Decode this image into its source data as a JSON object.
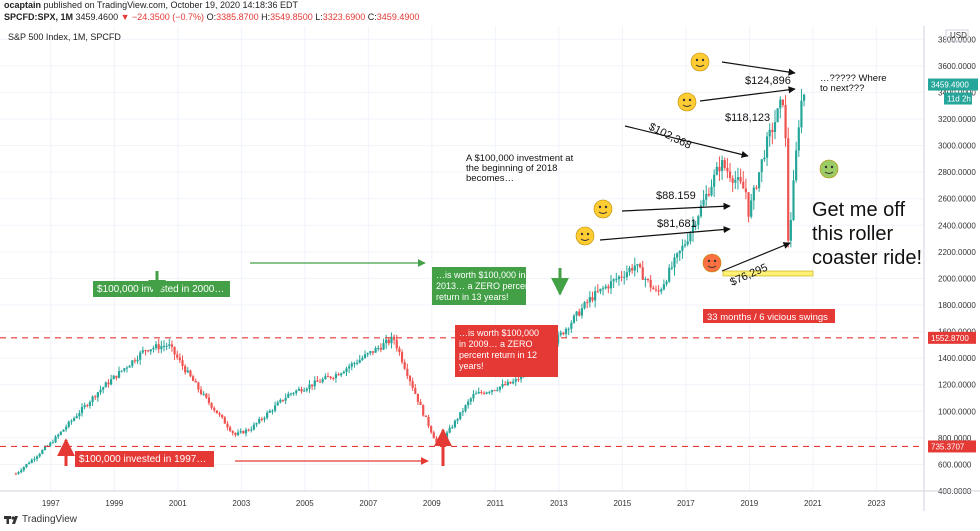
{
  "header": {
    "publisher": "ocaptain",
    "published_text": "published on TradingView.com, October 19, 2020 14:18:36 EDT",
    "symbol": "SPCFD:SPX, 1M",
    "last": "3459.4600",
    "change": "▼ −24.3500 (−0.7%)",
    "o_label": "O:",
    "o_val": "3385.8700",
    "h_label": "H:",
    "h_val": "3549.8500",
    "l_label": "L:",
    "l_val": "3323.6900",
    "c_label": "C:",
    "c_val": "3459.4900"
  },
  "brand": "TradingView",
  "colors": {
    "up": "#26a69a",
    "down": "#ef5350",
    "green_box": "#43a047",
    "red_box": "#e53935",
    "dashed": "#e53935",
    "price_tag": "#26a69a",
    "highlight": "#fff176"
  },
  "chart_data": {
    "type": "candlestick",
    "title": "S&P 500 Index, 1M, SPCFD",
    "currency": "USD",
    "ylim": [
      400,
      3900
    ],
    "xlim": [
      1995.4,
      2024.5
    ],
    "y_ticks": [
      "400.0000",
      "600.0000",
      "800.0000",
      "1000.0000",
      "1200.0000",
      "1400.0000",
      "1600.0000",
      "1800.0000",
      "2000.0000",
      "2200.0000",
      "2400.0000",
      "2600.0000",
      "2800.0000",
      "3000.0000",
      "3200.0000",
      "3400.0000",
      "3600.0000",
      "3800.0000"
    ],
    "x_ticks": [
      "1997",
      "1999",
      "2001",
      "2003",
      "2005",
      "2007",
      "2009",
      "2011",
      "2013",
      "2015",
      "2017",
      "2019",
      "2021",
      "2023"
    ],
    "anchors": [
      [
        1995.9,
        530
      ],
      [
        1997.0,
        760
      ],
      [
        1998.5,
        1150
      ],
      [
        2000.0,
        1470
      ],
      [
        2000.7,
        1500
      ],
      [
        2001.7,
        1150
      ],
      [
        2002.8,
        820
      ],
      [
        2003.3,
        870
      ],
      [
        2004.5,
        1130
      ],
      [
        2006.0,
        1280
      ],
      [
        2007.8,
        1550
      ],
      [
        2008.7,
        1000
      ],
      [
        2009.2,
        735
      ],
      [
        2010.3,
        1120
      ],
      [
        2011.6,
        1220
      ],
      [
        2012.5,
        1420
      ],
      [
        2013.0,
        1560
      ],
      [
        2014.0,
        1850
      ],
      [
        2015.4,
        2100
      ],
      [
        2016.1,
        1880
      ],
      [
        2017.0,
        2280
      ],
      [
        2018.1,
        2870
      ],
      [
        2018.9,
        2650
      ],
      [
        2018.98,
        2490
      ],
      [
        2019.5,
        2980
      ],
      [
        2020.1,
        3380
      ],
      [
        2020.23,
        2240
      ],
      [
        2020.6,
        3300
      ],
      [
        2020.8,
        3459.49
      ]
    ],
    "candles": {
      "start": 1995.9,
      "end": 2020.8,
      "step": 0.0833
    },
    "reference_lines": [
      {
        "value": 1552.87,
        "label": "1552.8700"
      },
      {
        "value": 735.3707,
        "label": "735.3707"
      }
    ],
    "current_price": {
      "value": 3459.49,
      "label": "3459.4900",
      "countdown": "11d 2h"
    },
    "annotations": {
      "green_box_1": "$100,000 invested in 2000…",
      "green_box_2": [
        "…is worth $100,000 in",
        "2013… a ZERO percent",
        "return in 13 years!"
      ],
      "red_box_1": "$100,000 invested in 1997…",
      "red_box_2": [
        "…is worth $100,000",
        "in 2009… a ZERO",
        "percent return in 12",
        "years!"
      ],
      "red_box_3": "33 months / 6 vicious swings",
      "intro": [
        "A $100,000 investment at",
        "the beginning of 2018",
        "becomes…"
      ],
      "where_next": [
        "…????? Where",
        "to next???"
      ],
      "roller": [
        "Get me off",
        "this roller",
        "coaster ride!"
      ],
      "values": [
        "$124,896",
        "$118,123",
        "$102,368",
        "$88.159",
        "$81,681",
        "$76,295"
      ]
    }
  }
}
